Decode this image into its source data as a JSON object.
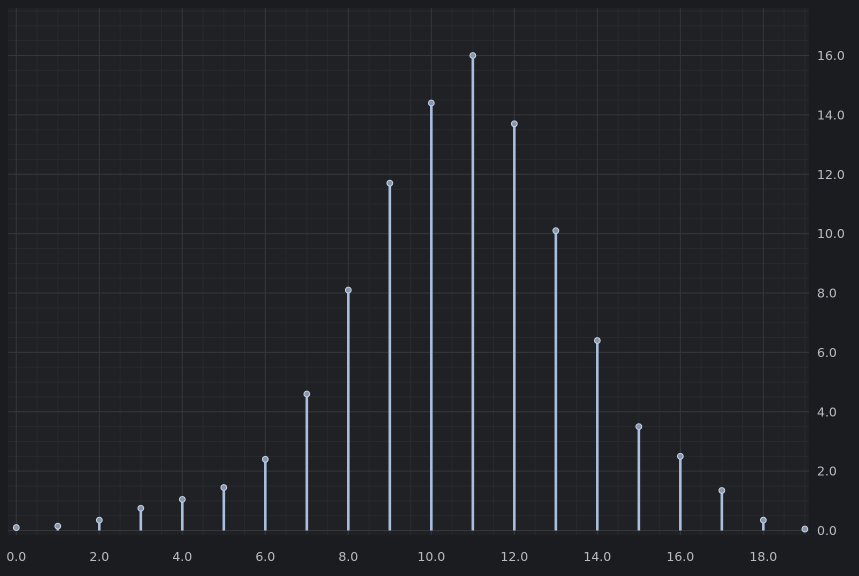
{
  "colors": {
    "background": "#1b1c1f",
    "plot_background": "#202124",
    "grid_major": "#34363a",
    "grid_minor": "#27292c",
    "stem": "#a9bfdf",
    "marker_fill": "#8796ad",
    "marker_stroke": "#c4d2e6",
    "tick_label": "#b9bcc2"
  },
  "chart_data": {
    "type": "stem",
    "title": "",
    "xlabel": "",
    "ylabel": "",
    "x": [
      0,
      1,
      2,
      3,
      4,
      5,
      6,
      7,
      8,
      9,
      10,
      11,
      12,
      13,
      14,
      15,
      16,
      17,
      18,
      19
    ],
    "values": [
      0.1,
      0.15,
      0.35,
      0.75,
      1.05,
      1.45,
      2.4,
      4.6,
      8.1,
      11.7,
      14.4,
      16.0,
      13.7,
      10.1,
      6.4,
      3.5,
      2.5,
      1.35,
      0.35,
      0.05
    ],
    "xlim": [
      -0.2,
      19.1
    ],
    "ylim": [
      -0.15,
      17.6
    ],
    "x_ticks": [
      0,
      2,
      4,
      6,
      8,
      10,
      12,
      14,
      16,
      18
    ],
    "x_tick_labels": [
      "0.0",
      "2.0",
      "4.0",
      "6.0",
      "8.0",
      "10.0",
      "12.0",
      "14.0",
      "16.0",
      "18.0"
    ],
    "y_ticks": [
      0,
      2,
      4,
      6,
      8,
      10,
      12,
      14,
      16
    ],
    "y_tick_labels": [
      "0.0",
      "2.0",
      "4.0",
      "6.0",
      "8.0",
      "10.0",
      "12.0",
      "14.0",
      "16.0"
    ],
    "y_axis_side": "right",
    "grid": true,
    "minor_grid": true,
    "legend": false
  }
}
